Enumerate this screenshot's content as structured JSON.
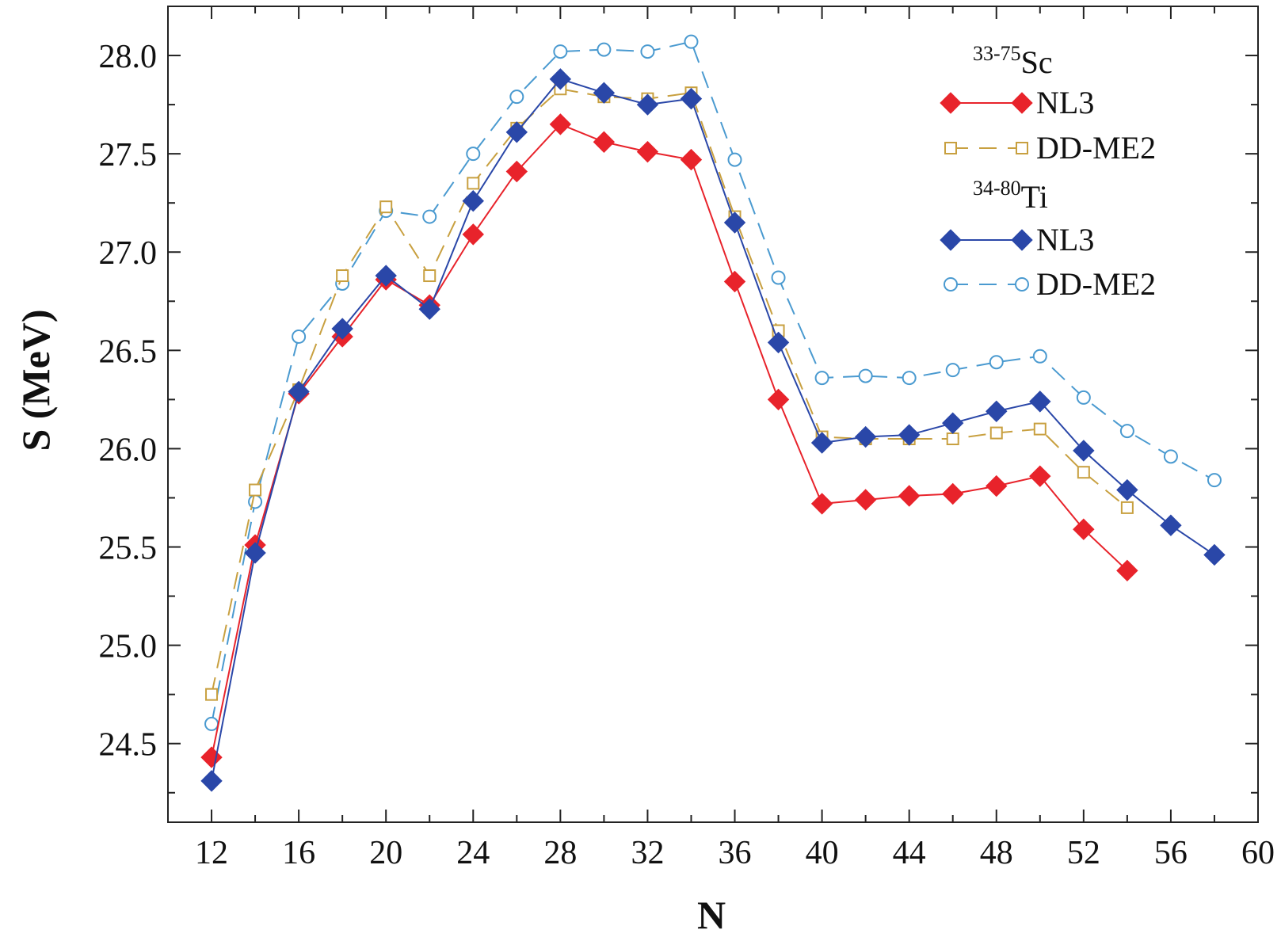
{
  "chart_data": {
    "type": "line",
    "title": "",
    "xlabel": "N",
    "ylabel": "S (MeV)",
    "xlim": [
      10,
      60
    ],
    "ylim": [
      24.1,
      28.25
    ],
    "xticks": [
      12,
      16,
      20,
      24,
      28,
      32,
      36,
      40,
      44,
      48,
      52,
      56,
      60
    ],
    "yticks": [
      24.5,
      25.0,
      25.5,
      26.0,
      26.5,
      27.0,
      27.5,
      28.0
    ],
    "x_minor_step": 2,
    "y_minor_step": 0.25,
    "legend_groups": [
      {
        "mass": "33-75",
        "symbol": "Sc",
        "series_indices": [
          0,
          1
        ]
      },
      {
        "mass": "34-80",
        "symbol": "Ti",
        "series_indices": [
          2,
          3
        ]
      }
    ],
    "series": [
      {
        "name": "NL3",
        "group": "Sc",
        "color": "#e8232b",
        "marker": "diamond-filled",
        "line": "solid",
        "x": [
          12,
          14,
          16,
          18,
          20,
          22,
          24,
          26,
          28,
          30,
          32,
          34,
          36,
          38,
          40,
          42,
          44,
          46,
          48,
          50,
          52,
          54
        ],
        "values": [
          24.43,
          25.51,
          26.28,
          26.57,
          26.86,
          26.73,
          27.09,
          27.41,
          27.65,
          27.56,
          27.51,
          27.47,
          26.85,
          26.25,
          25.72,
          25.74,
          25.76,
          25.77,
          25.81,
          25.86,
          25.59,
          25.38
        ]
      },
      {
        "name": "DD-ME2",
        "group": "Sc",
        "color": "#c8a040",
        "marker": "square-open",
        "line": "dashed",
        "x": [
          12,
          14,
          16,
          18,
          20,
          22,
          24,
          26,
          28,
          30,
          32,
          34,
          36,
          38,
          40,
          42,
          44,
          46,
          48,
          50,
          52,
          54
        ],
        "values": [
          24.75,
          25.79,
          26.3,
          26.88,
          27.23,
          26.88,
          27.35,
          27.63,
          27.83,
          27.79,
          27.78,
          27.81,
          27.18,
          26.6,
          26.06,
          26.05,
          26.05,
          26.05,
          26.08,
          26.1,
          25.88,
          25.7
        ]
      },
      {
        "name": "NL3",
        "group": "Ti",
        "color": "#2a47a8",
        "marker": "diamond-filled",
        "line": "solid",
        "x": [
          12,
          14,
          16,
          18,
          20,
          22,
          24,
          26,
          28,
          30,
          32,
          34,
          36,
          38,
          40,
          42,
          44,
          46,
          48,
          50,
          52,
          54,
          56,
          58
        ],
        "values": [
          24.31,
          25.47,
          26.29,
          26.61,
          26.88,
          26.71,
          27.26,
          27.61,
          27.88,
          27.81,
          27.75,
          27.78,
          27.15,
          26.54,
          26.03,
          26.06,
          26.07,
          26.13,
          26.19,
          26.24,
          25.99,
          25.79,
          25.61,
          25.46
        ]
      },
      {
        "name": "DD-ME2",
        "group": "Ti",
        "color": "#4a9ad0",
        "marker": "circle-open",
        "line": "dashed",
        "x": [
          12,
          14,
          16,
          18,
          20,
          22,
          24,
          26,
          28,
          30,
          32,
          34,
          36,
          38,
          40,
          42,
          44,
          46,
          48,
          50,
          52,
          54,
          56,
          58
        ],
        "values": [
          24.6,
          25.73,
          26.57,
          26.84,
          27.21,
          27.18,
          27.5,
          27.79,
          28.02,
          28.03,
          28.02,
          28.07,
          27.47,
          26.87,
          26.36,
          26.37,
          26.36,
          26.4,
          26.44,
          26.47,
          26.26,
          26.09,
          25.96,
          25.84
        ]
      }
    ]
  }
}
